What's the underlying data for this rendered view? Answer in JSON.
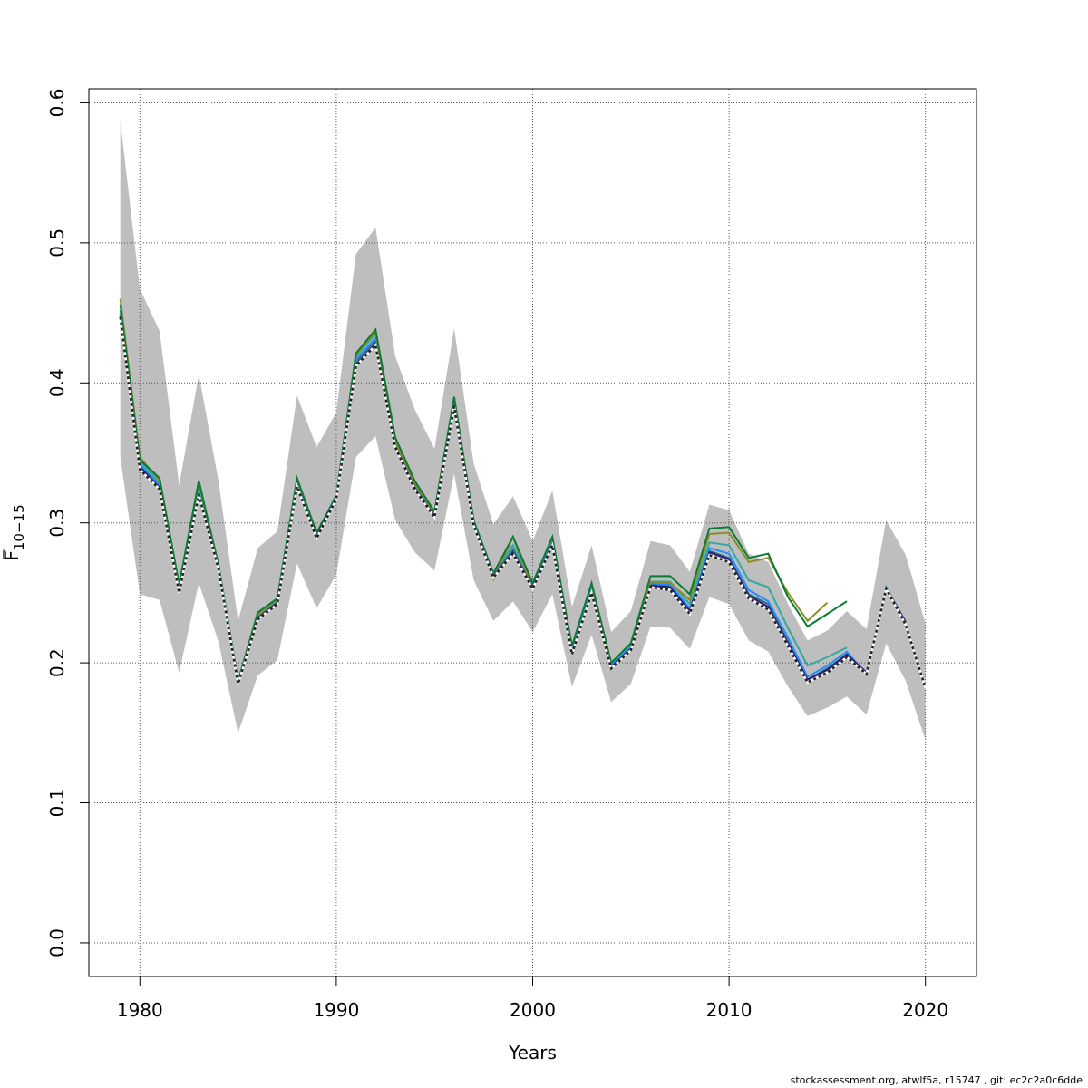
{
  "chart_data": {
    "type": "line",
    "xlabel": "Years",
    "ylabel_main": "F",
    "ylabel_sub": "10−15",
    "xlim": [
      1977.4,
      2022.6
    ],
    "ylim": [
      -0.024,
      0.61
    ],
    "x_ticks": [
      1980,
      1990,
      2000,
      2010,
      2020
    ],
    "x_tick_labels": [
      "1980",
      "1990",
      "2000",
      "2010",
      "2020"
    ],
    "y_ticks": [
      0.0,
      0.1,
      0.2,
      0.3,
      0.4,
      0.5,
      0.6
    ],
    "y_tick_labels": [
      "0.0",
      "0.1",
      "0.2",
      "0.3",
      "0.4",
      "0.5",
      "0.6"
    ],
    "grid": true,
    "confidence_band": {
      "color": "#bebebe",
      "x": [
        1979,
        1980,
        1981,
        1982,
        1983,
        1984,
        1985,
        1986,
        1987,
        1988,
        1989,
        1990,
        1991,
        1992,
        1993,
        1994,
        1995,
        1996,
        1997,
        1998,
        1999,
        2000,
        2001,
        2002,
        2003,
        2004,
        2005,
        2006,
        2007,
        2008,
        2009,
        2010,
        2011,
        2012,
        2013,
        2014,
        2015,
        2016,
        2017,
        2018,
        2019,
        2020
      ],
      "upper": [
        0.587,
        0.467,
        0.437,
        0.327,
        0.406,
        0.33,
        0.23,
        0.282,
        0.294,
        0.391,
        0.354,
        0.379,
        0.492,
        0.511,
        0.419,
        0.381,
        0.353,
        0.439,
        0.342,
        0.299,
        0.319,
        0.287,
        0.323,
        0.24,
        0.284,
        0.222,
        0.237,
        0.287,
        0.284,
        0.265,
        0.313,
        0.309,
        0.278,
        0.272,
        0.242,
        0.216,
        0.223,
        0.237,
        0.224,
        0.302,
        0.277,
        0.228
      ],
      "lower": [
        0.347,
        0.249,
        0.245,
        0.193,
        0.257,
        0.215,
        0.15,
        0.191,
        0.202,
        0.271,
        0.239,
        0.263,
        0.347,
        0.362,
        0.302,
        0.279,
        0.266,
        0.335,
        0.259,
        0.23,
        0.244,
        0.222,
        0.249,
        0.183,
        0.22,
        0.172,
        0.185,
        0.226,
        0.225,
        0.21,
        0.247,
        0.242,
        0.216,
        0.208,
        0.183,
        0.162,
        0.168,
        0.176,
        0.163,
        0.214,
        0.187,
        0.145
      ]
    },
    "series": [
      {
        "color": "#2e6f8e",
        "dashed": false,
        "x": [
          1979,
          1980,
          1981,
          1982,
          1983,
          1984,
          1985,
          1986,
          1987,
          1988,
          1989,
          1990,
          1991,
          1992,
          1993,
          1994,
          1995,
          1996,
          1997,
          1998,
          1999,
          2000,
          2001,
          2002,
          2003,
          2004,
          2005,
          2006,
          2007,
          2008,
          2009,
          2010,
          2011,
          2012,
          2013,
          2014,
          2015,
          2016,
          2017,
          2018,
          2019
        ],
        "values": [
          0.449,
          0.34,
          0.326,
          0.251,
          0.322,
          0.268,
          0.186,
          0.233,
          0.244,
          0.328,
          0.29,
          0.318,
          0.415,
          0.43,
          0.357,
          0.326,
          0.306,
          0.386,
          0.3,
          0.262,
          0.281,
          0.255,
          0.287,
          0.208,
          0.252,
          0.198,
          0.211,
          0.256,
          0.255,
          0.237,
          0.28,
          0.275,
          0.249,
          0.242,
          0.215,
          0.188,
          0.196,
          0.206,
          0.193,
          0.254,
          0.229
        ]
      },
      {
        "color": "#1e90ff",
        "dashed": false,
        "x": [
          1979,
          1980,
          1981,
          1982,
          1983,
          1984,
          1985,
          1986,
          1987,
          1988,
          1989,
          1990,
          1991,
          1992,
          1993,
          1994,
          1995,
          1996,
          1997,
          1998,
          1999,
          2000,
          2001,
          2002,
          2003,
          2004,
          2005,
          2006,
          2007,
          2008,
          2009,
          2010,
          2011,
          2012,
          2013,
          2014,
          2015,
          2016,
          2017
        ],
        "values": [
          0.45,
          0.342,
          0.327,
          0.252,
          0.323,
          0.269,
          0.186,
          0.234,
          0.245,
          0.329,
          0.291,
          0.319,
          0.417,
          0.432,
          0.358,
          0.327,
          0.307,
          0.387,
          0.3,
          0.263,
          0.284,
          0.256,
          0.288,
          0.209,
          0.253,
          0.199,
          0.212,
          0.257,
          0.256,
          0.239,
          0.282,
          0.278,
          0.252,
          0.244,
          0.218,
          0.19,
          0.198,
          0.208,
          0.192
        ]
      },
      {
        "color": "#33a9a0",
        "dashed": false,
        "x": [
          1979,
          1980,
          1981,
          1982,
          1983,
          1984,
          1985,
          1986,
          1987,
          1988,
          1989,
          1990,
          1991,
          1992,
          1993,
          1994,
          1995,
          1996,
          1997,
          1998,
          1999,
          2000,
          2001,
          2002,
          2003,
          2004,
          2005,
          2006,
          2007,
          2008,
          2009,
          2010,
          2011,
          2012,
          2013,
          2014,
          2015,
          2016
        ],
        "values": [
          0.452,
          0.344,
          0.329,
          0.253,
          0.325,
          0.27,
          0.187,
          0.235,
          0.246,
          0.331,
          0.292,
          0.32,
          0.419,
          0.435,
          0.36,
          0.329,
          0.307,
          0.388,
          0.302,
          0.264,
          0.284,
          0.257,
          0.289,
          0.21,
          0.255,
          0.2,
          0.213,
          0.258,
          0.258,
          0.242,
          0.286,
          0.284,
          0.259,
          0.254,
          0.225,
          0.198,
          0.204,
          0.211
        ]
      },
      {
        "color": "#8c8c2a",
        "dashed": false,
        "x": [
          1979,
          1980,
          1981,
          1982,
          1983,
          1984,
          1985,
          1986,
          1987,
          1988,
          1989,
          1990,
          1991,
          1992,
          1993,
          1994,
          1995,
          1996,
          1997,
          1998,
          1999,
          2000,
          2001,
          2002,
          2003,
          2004,
          2005,
          2006,
          2007,
          2008,
          2009,
          2010,
          2011,
          2012,
          2013,
          2014,
          2015
        ],
        "values": [
          0.46,
          0.347,
          0.33,
          0.254,
          0.33,
          0.268,
          0.186,
          0.234,
          0.244,
          0.327,
          0.289,
          0.317,
          0.42,
          0.436,
          0.358,
          0.328,
          0.307,
          0.385,
          0.298,
          0.26,
          0.29,
          0.253,
          0.284,
          0.206,
          0.25,
          0.196,
          0.21,
          0.258,
          0.257,
          0.245,
          0.292,
          0.293,
          0.272,
          0.275,
          0.25,
          0.23,
          0.243
        ]
      },
      {
        "color": "#0b7a33",
        "dashed": false,
        "x": [
          1979,
          1980,
          1981,
          1982,
          1983,
          1984,
          1985,
          1986,
          1987,
          1988,
          1989,
          1990,
          1991,
          1992,
          1993,
          1994,
          1995,
          1996,
          1997,
          1998,
          1999,
          2000,
          2001,
          2002,
          2003,
          2004,
          2005,
          2006,
          2007,
          2008,
          2009,
          2010,
          2011,
          2012,
          2013,
          2014,
          2015,
          2016
        ],
        "values": [
          0.456,
          0.345,
          0.332,
          0.256,
          0.33,
          0.27,
          0.187,
          0.236,
          0.246,
          0.332,
          0.293,
          0.319,
          0.421,
          0.438,
          0.361,
          0.33,
          0.308,
          0.39,
          0.301,
          0.264,
          0.29,
          0.257,
          0.29,
          0.212,
          0.257,
          0.2,
          0.214,
          0.262,
          0.262,
          0.249,
          0.296,
          0.297,
          0.275,
          0.278,
          0.247,
          0.226,
          0.235,
          0.244
        ]
      },
      {
        "color": "#2b1a70",
        "dashed": false,
        "x": [
          1979,
          1980,
          1981,
          1982,
          1983,
          1984,
          1985,
          1986,
          1987,
          1988,
          1989,
          1990,
          1991,
          1992,
          1993,
          1994,
          1995,
          1996,
          1997,
          1998,
          1999,
          2000,
          2001,
          2002,
          2003,
          2004,
          2005,
          2006,
          2007,
          2008,
          2009,
          2010,
          2011,
          2012,
          2013,
          2014,
          2015,
          2016,
          2017,
          2018,
          2019
        ],
        "values": [
          0.448,
          0.34,
          0.325,
          0.25,
          0.321,
          0.268,
          0.185,
          0.232,
          0.243,
          0.327,
          0.29,
          0.318,
          0.413,
          0.428,
          0.355,
          0.325,
          0.305,
          0.384,
          0.299,
          0.262,
          0.279,
          0.254,
          0.285,
          0.207,
          0.251,
          0.197,
          0.21,
          0.255,
          0.254,
          0.237,
          0.279,
          0.274,
          0.248,
          0.24,
          0.214,
          0.188,
          0.195,
          0.206,
          0.193,
          0.253,
          0.229
        ]
      },
      {
        "color": "#222222",
        "dashed": true,
        "x": [
          1979,
          1980,
          1981,
          1982,
          1983,
          1984,
          1985,
          1986,
          1987,
          1988,
          1989,
          1990,
          1991,
          1992,
          1993,
          1994,
          1995,
          1996,
          1997,
          1998,
          1999,
          2000,
          2001,
          2002,
          2003,
          2004,
          2005,
          2006,
          2007,
          2008,
          2009,
          2010,
          2011,
          2012,
          2013,
          2014,
          2015,
          2016,
          2017,
          2018,
          2019,
          2020
        ],
        "values": [
          0.447,
          0.338,
          0.324,
          0.25,
          0.32,
          0.267,
          0.185,
          0.231,
          0.242,
          0.326,
          0.289,
          0.317,
          0.412,
          0.427,
          0.354,
          0.324,
          0.304,
          0.383,
          0.298,
          0.261,
          0.278,
          0.253,
          0.284,
          0.206,
          0.25,
          0.196,
          0.209,
          0.254,
          0.252,
          0.235,
          0.277,
          0.272,
          0.246,
          0.238,
          0.212,
          0.186,
          0.193,
          0.204,
          0.192,
          0.253,
          0.227,
          0.182
        ]
      }
    ]
  },
  "footer_text": "stockassessment.org, atwlf5a, r15747 , git: ec2c2a0c6dde"
}
